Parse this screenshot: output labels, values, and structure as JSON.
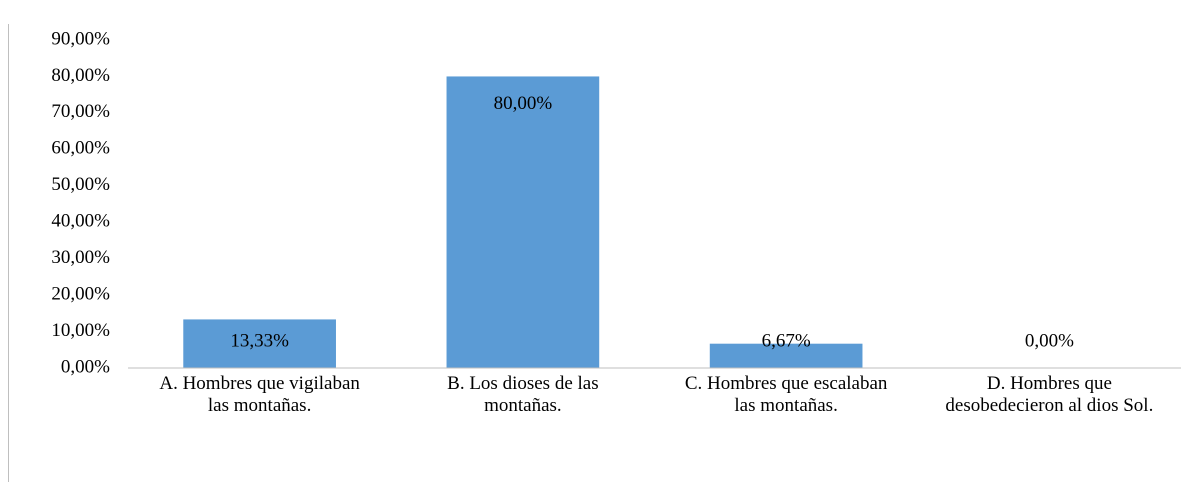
{
  "chart_data": {
    "type": "bar",
    "categories": [
      "A. Hombres que vigilaban las montañas.",
      "B. Los dioses de las montañas.",
      "C. Hombres que escalaban las montañas.",
      "D. Hombres que desobedecieron al dios Sol."
    ],
    "values": [
      13.33,
      80,
      6.67,
      0
    ],
    "value_labels": [
      "13,33%",
      "80,00%",
      "6,67%",
      "0,00%"
    ],
    "color": "#5b9bd5",
    "ylim": [
      0,
      90
    ],
    "yticks": [
      {
        "value": 0,
        "label": "0,00%"
      },
      {
        "value": 10,
        "label": "10,00%"
      },
      {
        "value": 20,
        "label": "20,00%"
      },
      {
        "value": 30,
        "label": "30,00%"
      },
      {
        "value": 40,
        "label": "40,00%"
      },
      {
        "value": 50,
        "label": "50,00%"
      },
      {
        "value": 60,
        "label": "60,00%"
      },
      {
        "value": 70,
        "label": "70,00%"
      },
      {
        "value": 80,
        "label": "80,00%"
      },
      {
        "value": 90,
        "label": "90,00%"
      }
    ],
    "grid": false
  }
}
